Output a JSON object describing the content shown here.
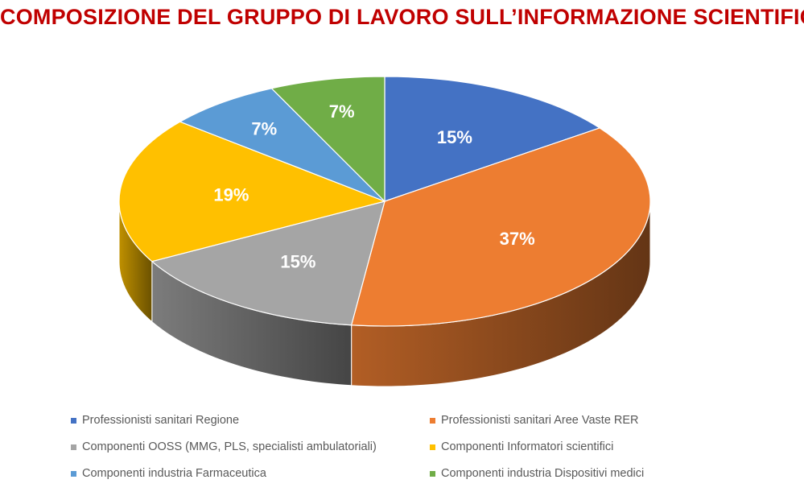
{
  "chart_data": {
    "type": "pie",
    "title": "COMPOSIZIONE DEL GRUPPO DI LAVORO SULL’INFORMAZIONE SCIENTIFICA",
    "legend_position": "bottom",
    "three_d": true,
    "slices": [
      {
        "label": "Professionisti sanitari  Regione",
        "value": 15,
        "value_label": "15%",
        "color": "#4472c4"
      },
      {
        "label": "Professionisti sanitari Aree Vaste RER",
        "value": 37,
        "value_label": "37%",
        "color": "#ed7d31"
      },
      {
        "label": "Componenti OOSS (MMG, PLS, specialisti ambulatoriali)",
        "value": 15,
        "value_label": "15%",
        "color": "#a5a5a5"
      },
      {
        "label": "Componenti Informatori scientifici",
        "value": 19,
        "value_label": "19%",
        "color": "#ffc000"
      },
      {
        "label": "Componenti industria Farmaceutica",
        "value": 7,
        "value_label": "7%",
        "color": "#5b9bd5"
      },
      {
        "label": "Componenti industria Dispositivi medici",
        "value": 7,
        "value_label": "7%",
        "color": "#70ad47"
      }
    ]
  }
}
